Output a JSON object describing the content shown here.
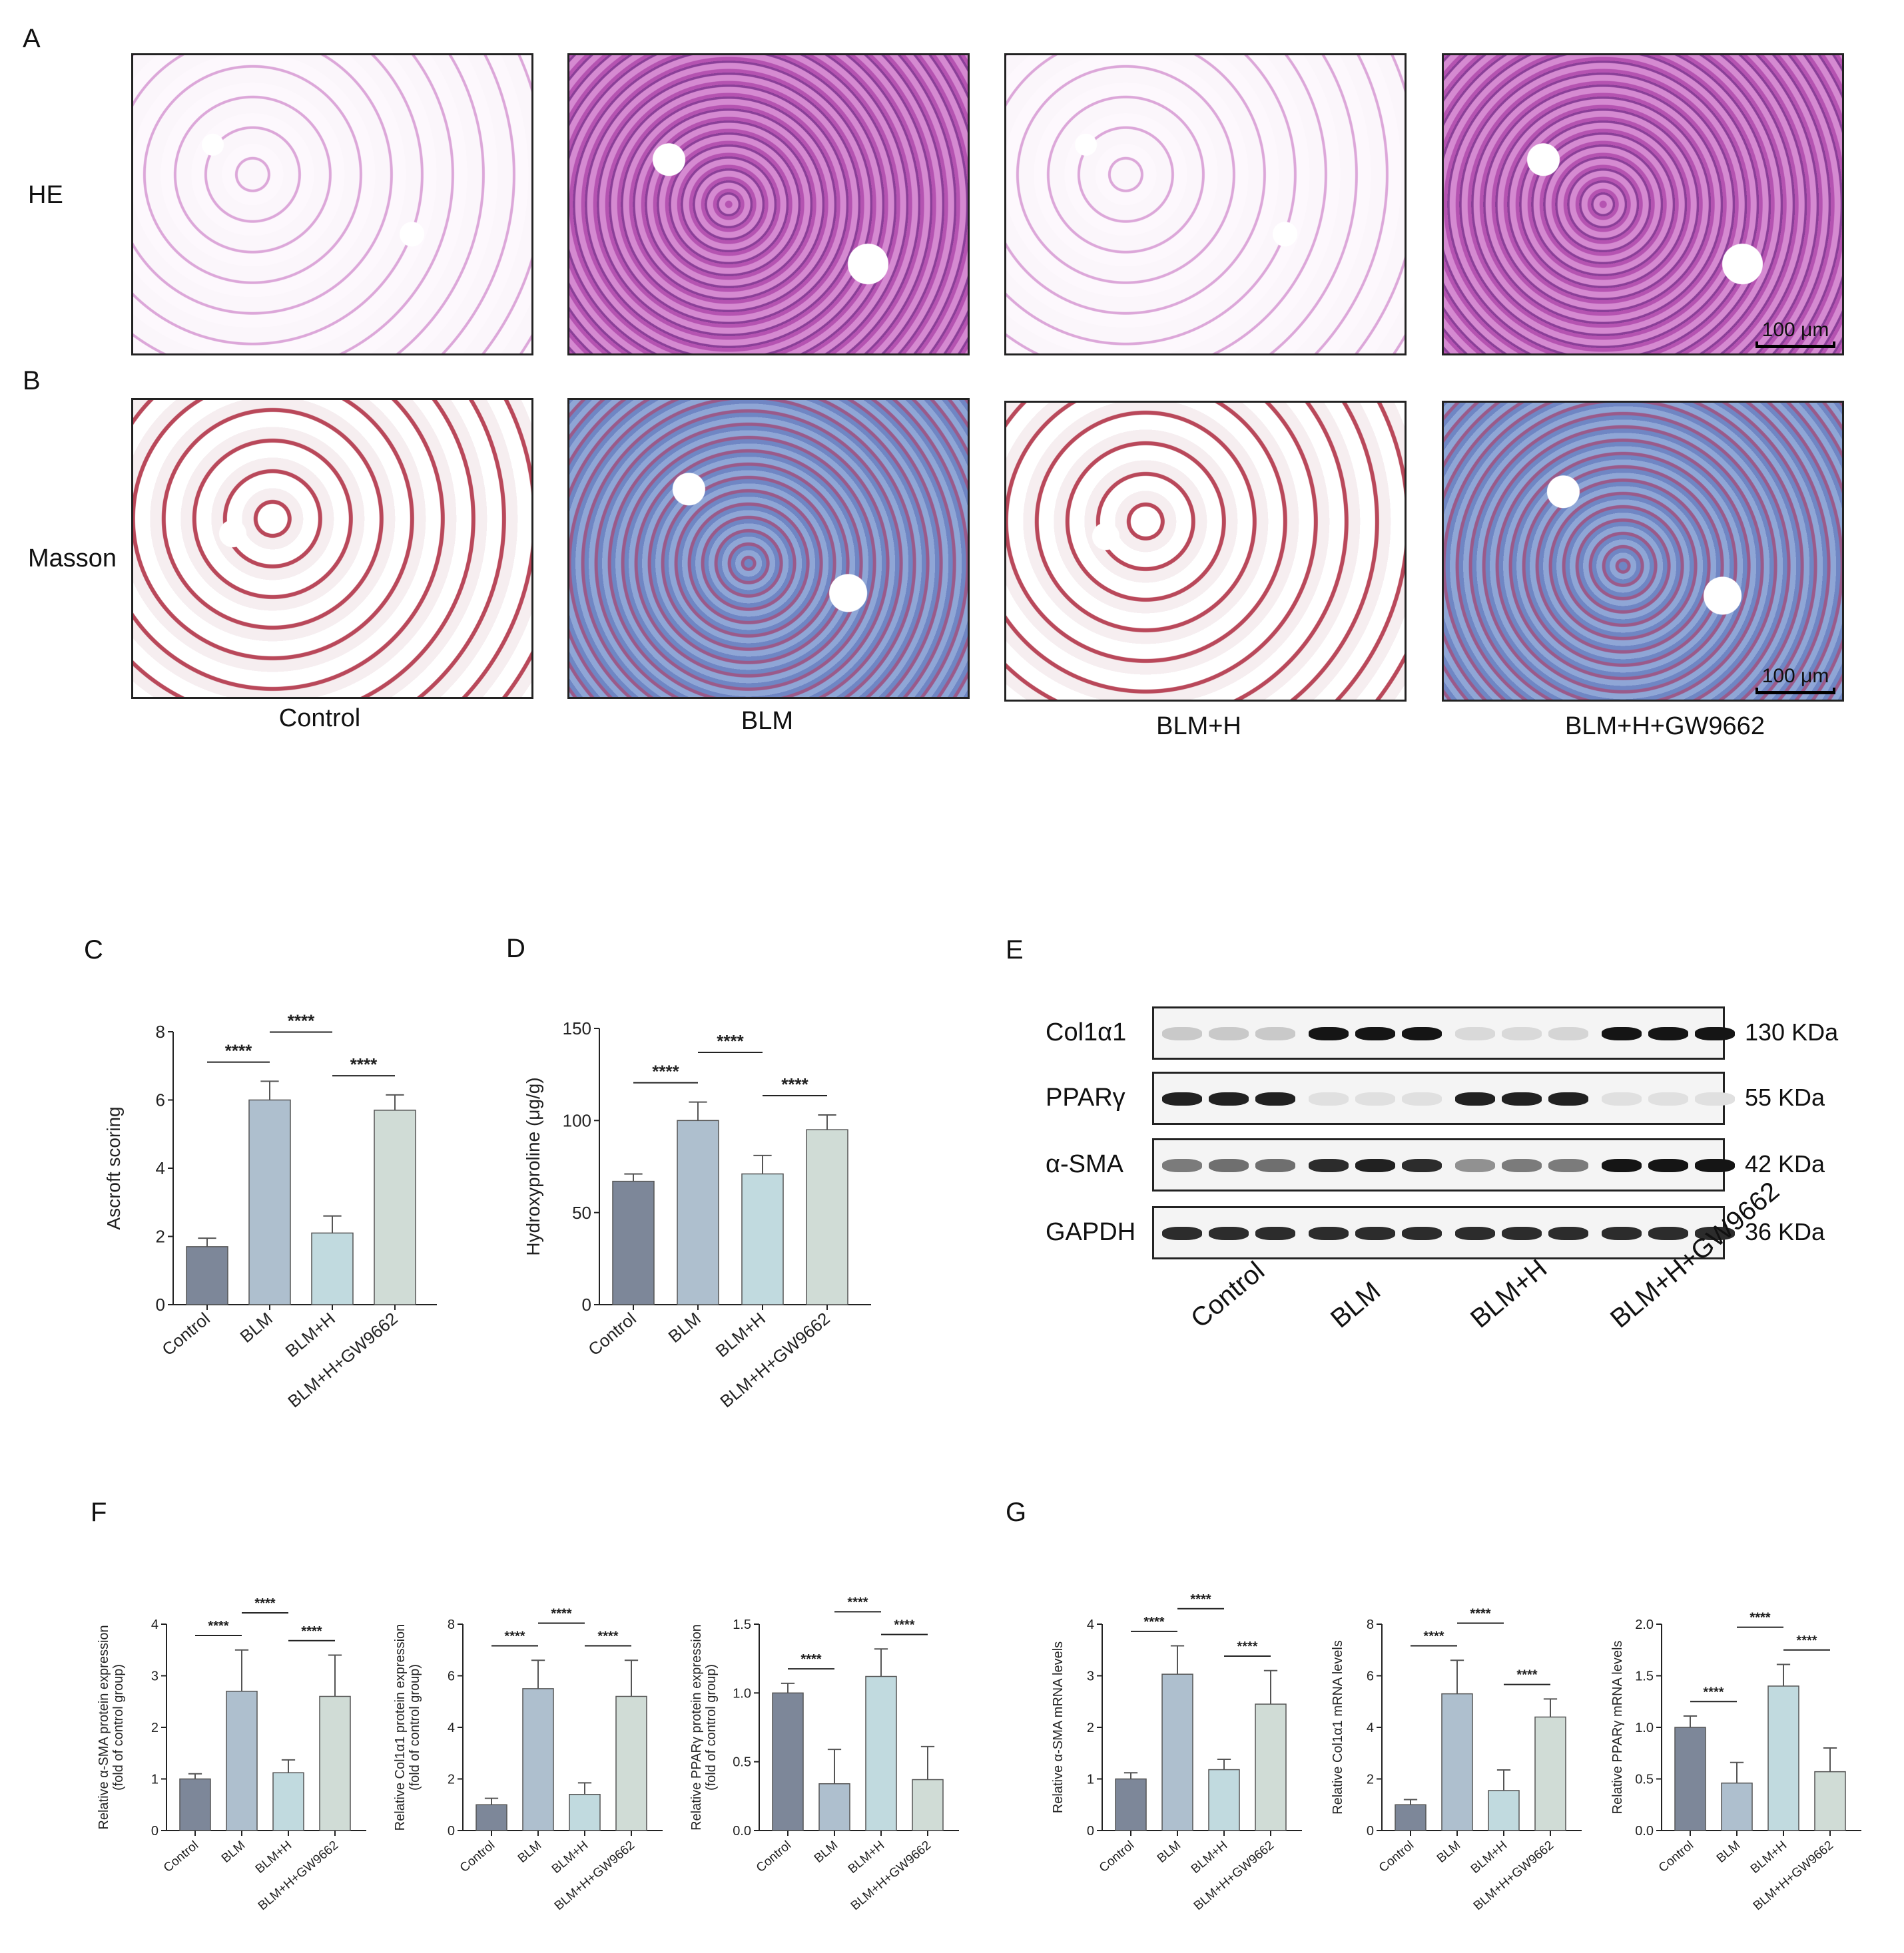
{
  "panels": {
    "A": "A",
    "B": "B",
    "C": "C",
    "D": "D",
    "E": "E",
    "F": "F",
    "G": "G"
  },
  "rows": {
    "he": "HE",
    "masson": "Masson"
  },
  "groups": [
    "Control",
    "BLM",
    "BLM+H",
    "BLM+H+GW9662"
  ],
  "scale_bar": "100 μm",
  "stars": "****",
  "colors": {
    "Control": "#7d8799",
    "BLM": "#aebfce",
    "BLM+H": "#c1dadf",
    "BLM+H+GW9662": "#d0dcd6"
  },
  "blot": {
    "lanes": [
      "Control",
      "BLM",
      "BLM+H",
      "BLM+H+GW9662"
    ],
    "rows": [
      {
        "name": "Col1α1",
        "kda": "130 KDa",
        "intensity": [
          0.15,
          0.15,
          0.15,
          0.95,
          0.95,
          0.95,
          0.08,
          0.08,
          0.1,
          0.95,
          0.95,
          0.95
        ]
      },
      {
        "name": "PPARγ",
        "kda": "55 KDa",
        "intensity": [
          0.9,
          0.9,
          0.9,
          0.05,
          0.05,
          0.05,
          0.9,
          0.9,
          0.9,
          0.05,
          0.05,
          0.05
        ]
      },
      {
        "name": "α-SMA",
        "kda": "42 KDa",
        "intensity": [
          0.5,
          0.55,
          0.55,
          0.85,
          0.9,
          0.85,
          0.4,
          0.5,
          0.5,
          0.95,
          0.95,
          0.95
        ]
      },
      {
        "name": "GAPDH",
        "kda": "36 KDa",
        "intensity": [
          0.85,
          0.85,
          0.85,
          0.85,
          0.85,
          0.85,
          0.85,
          0.85,
          0.85,
          0.85,
          0.85,
          0.85
        ]
      }
    ]
  },
  "chart_data": [
    {
      "id": "C",
      "type": "bar",
      "categories": [
        "Control",
        "BLM",
        "BLM+H",
        "BLM+H+GW9662"
      ],
      "values": [
        1.7,
        6.0,
        2.1,
        5.7
      ],
      "errors": [
        0.25,
        0.55,
        0.5,
        0.45
      ],
      "ylabel": "Ascroft scoring",
      "ylim": [
        0,
        8
      ],
      "yticks": [
        "0",
        "2",
        "4",
        "6",
        "8"
      ],
      "sig": [
        [
          0,
          1,
          "****"
        ],
        [
          1,
          2,
          "****"
        ],
        [
          2,
          3,
          "****"
        ]
      ]
    },
    {
      "id": "D",
      "type": "bar",
      "categories": [
        "Control",
        "BLM",
        "BLM+H",
        "BLM+H+GW9662"
      ],
      "values": [
        67,
        100,
        71,
        95
      ],
      "errors": [
        4,
        10,
        10,
        8
      ],
      "ylabel": "Hydroxyproline (μg/g)",
      "ylim": [
        0,
        150
      ],
      "yticks": [
        "0",
        "50",
        "100",
        "150"
      ],
      "sig": [
        [
          0,
          1,
          "****"
        ],
        [
          1,
          2,
          "****"
        ],
        [
          2,
          3,
          "****"
        ]
      ]
    },
    {
      "id": "F1",
      "type": "bar",
      "categories": [
        "Control",
        "BLM",
        "BLM+H",
        "BLM+H+GW9662"
      ],
      "values": [
        1.0,
        2.7,
        1.12,
        2.6
      ],
      "errors": [
        0.1,
        0.8,
        0.25,
        0.8
      ],
      "ylabel": "Relative α-SMA protein expression",
      "ylabel2": "(fold of control group)",
      "ylim": [
        0,
        4
      ],
      "yticks": [
        "0",
        "1",
        "2",
        "3",
        "4"
      ],
      "sig": [
        [
          0,
          1,
          "****"
        ],
        [
          1,
          2,
          "****"
        ],
        [
          2,
          3,
          "****"
        ]
      ]
    },
    {
      "id": "F2",
      "type": "bar",
      "categories": [
        "Control",
        "BLM",
        "BLM+H",
        "BLM+H+GW9662"
      ],
      "values": [
        1.0,
        5.5,
        1.4,
        5.2
      ],
      "errors": [
        0.25,
        1.1,
        0.45,
        1.4
      ],
      "ylabel": "Relative Col1α1 protein expression",
      "ylabel2": "(fold of control group)",
      "ylim": [
        0,
        8
      ],
      "yticks": [
        "0",
        "2",
        "4",
        "6",
        "8"
      ],
      "sig": [
        [
          0,
          1,
          "****"
        ],
        [
          1,
          2,
          "****"
        ],
        [
          2,
          3,
          "****"
        ]
      ]
    },
    {
      "id": "F3",
      "type": "bar",
      "categories": [
        "Control",
        "BLM",
        "BLM+H",
        "BLM+H+GW9662"
      ],
      "values": [
        1.0,
        0.34,
        1.12,
        0.37
      ],
      "errors": [
        0.07,
        0.25,
        0.2,
        0.24
      ],
      "ylabel": "Relative PPARγ protein expression",
      "ylabel2": "(fold of control group)",
      "ylim": [
        0,
        1.5
      ],
      "yticks": [
        "0.0",
        "0.5",
        "1.0",
        "1.5"
      ],
      "sig": [
        [
          0,
          1,
          "****"
        ],
        [
          1,
          2,
          "****"
        ],
        [
          2,
          3,
          "****"
        ]
      ]
    },
    {
      "id": "G1",
      "type": "bar",
      "categories": [
        "Control",
        "BLM",
        "BLM+H",
        "BLM+H+GW9662"
      ],
      "values": [
        1.0,
        3.03,
        1.18,
        2.45
      ],
      "errors": [
        0.12,
        0.55,
        0.2,
        0.65
      ],
      "ylabel": "Relative α-SMA mRNA levels",
      "ylim": [
        0,
        4
      ],
      "yticks": [
        "0",
        "1",
        "2",
        "3",
        "4"
      ],
      "sig": [
        [
          0,
          1,
          "****"
        ],
        [
          1,
          2,
          "****"
        ],
        [
          2,
          3,
          "****"
        ]
      ]
    },
    {
      "id": "G2",
      "type": "bar",
      "categories": [
        "Control",
        "BLM",
        "BLM+H",
        "BLM+H+GW9662"
      ],
      "values": [
        1.0,
        5.3,
        1.55,
        4.4
      ],
      "errors": [
        0.2,
        1.3,
        0.8,
        0.7
      ],
      "ylabel": "Relative Col1α1 mRNA levels",
      "ylim": [
        0,
        8
      ],
      "yticks": [
        "0",
        "2",
        "4",
        "6",
        "8"
      ],
      "sig": [
        [
          0,
          1,
          "****"
        ],
        [
          1,
          2,
          "****"
        ],
        [
          2,
          3,
          "****"
        ]
      ]
    },
    {
      "id": "G3",
      "type": "bar",
      "categories": [
        "Control",
        "BLM",
        "BLM+H",
        "BLM+H+GW9662"
      ],
      "values": [
        1.0,
        0.46,
        1.4,
        0.57
      ],
      "errors": [
        0.11,
        0.2,
        0.21,
        0.23
      ],
      "ylabel": "Relative PPARγ mRNA levels",
      "ylim": [
        0,
        2.0
      ],
      "yticks": [
        "0.0",
        "0.5",
        "1.0",
        "1.5",
        "2.0"
      ],
      "sig": [
        [
          0,
          1,
          "****"
        ],
        [
          1,
          2,
          "****"
        ],
        [
          2,
          3,
          "****"
        ]
      ]
    }
  ]
}
